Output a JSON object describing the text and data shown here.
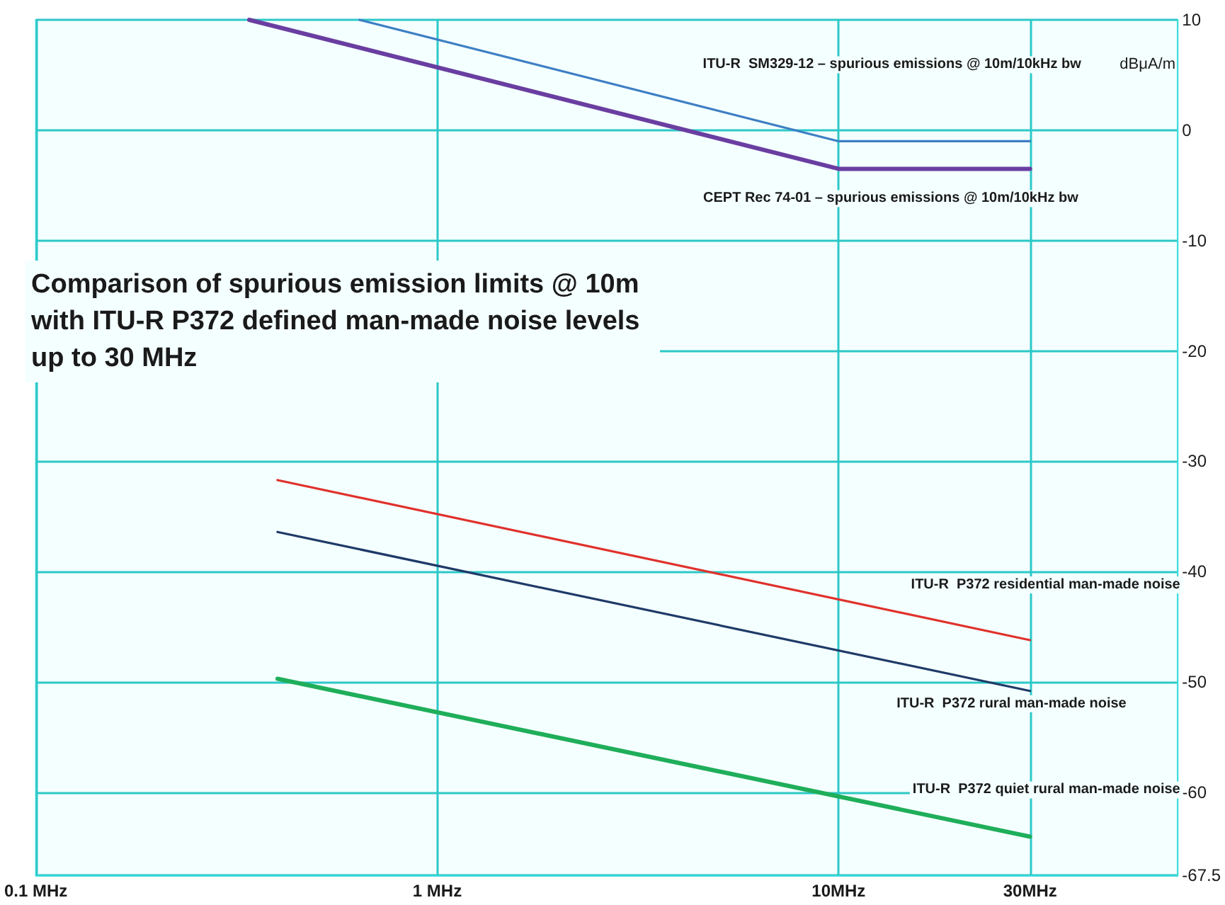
{
  "chart_data": {
    "type": "line",
    "title": "Comparison of spurious emission limits @ 10m with ITU-R P372 defined man-made noise levels up to 30 MHz",
    "ylabel": "dBμA/m",
    "log": "x",
    "xlim": [
      0.1,
      70
    ],
    "xticks": [
      {
        "value": 0.1,
        "label": "0.1 MHz"
      },
      {
        "value": 1,
        "label": "1 MHz"
      },
      {
        "value": 10,
        "label": "10MHz"
      },
      {
        "value": 30,
        "label": "30MHz"
      }
    ],
    "ylim": [
      -67.5,
      10
    ],
    "yticks": [
      10,
      0,
      -10,
      -20,
      -30,
      -40,
      -50,
      -60,
      -67.5
    ],
    "grid": true,
    "legend": false,
    "marker": "none",
    "line_style": "solid",
    "series": [
      {
        "name": "ITU-R  SM329-12 – spurious emissions @ 10m/10kHz bw",
        "color": "#3d7fc4",
        "x": [
          0.64,
          10,
          30
        ],
        "values": [
          10,
          -1,
          -1
        ]
      },
      {
        "name": "CEPT Rec 74-01 – spurious emissions @ 10m/10kHz bw",
        "color": "#6a3ea1",
        "x": [
          0.34,
          10,
          30
        ],
        "values": [
          10,
          -3.5,
          -3.5
        ]
      },
      {
        "name": "ITU-R  P372 residential man-made noise",
        "color": "#e0312b",
        "x": [
          0.4,
          30
        ],
        "values": [
          -31.7,
          -46.2
        ]
      },
      {
        "name": "ITU-R  P372 rural man-made noise",
        "color": "#1f3a68",
        "x": [
          0.4,
          30
        ],
        "values": [
          -36.4,
          -50.8
        ]
      },
      {
        "name": "ITU-R  P372 quiet rural man-made noise",
        "color": "#1fae5a",
        "x": [
          0.4,
          30
        ],
        "values": [
          -49.7,
          -64
        ]
      }
    ]
  }
}
